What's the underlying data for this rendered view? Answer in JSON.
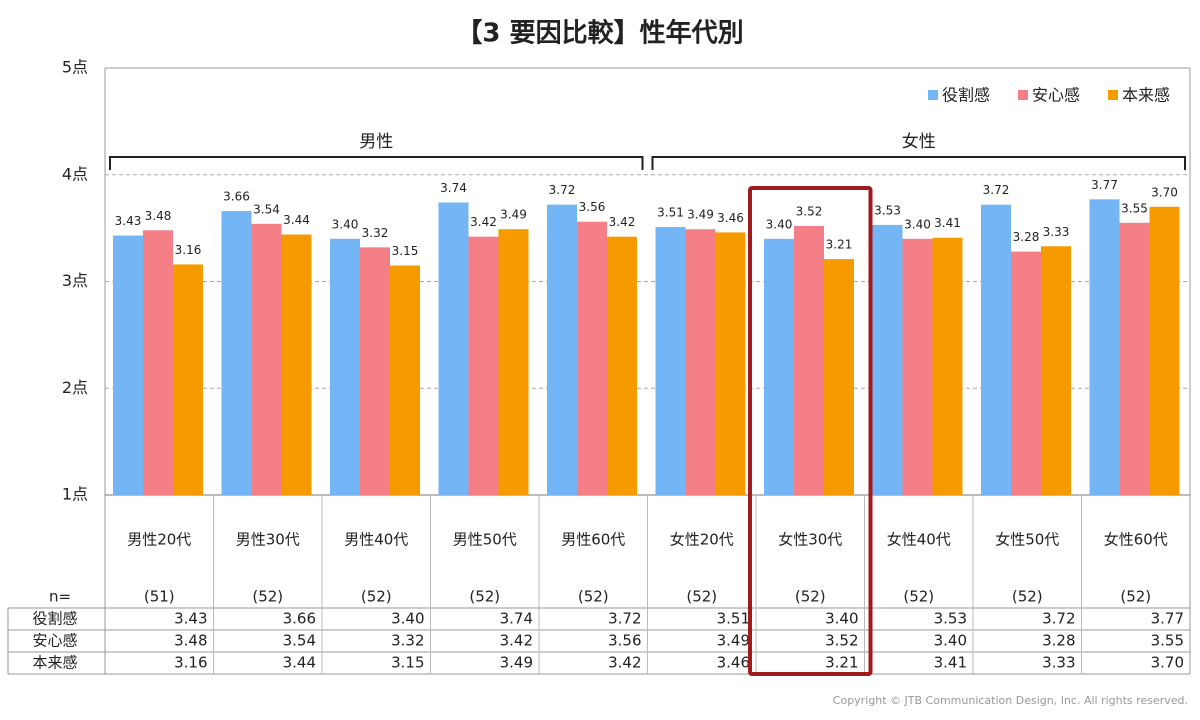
{
  "chart_data": {
    "type": "bar",
    "title": "【3 要因比較】性年代別",
    "categories": [
      "男性20代",
      "男性30代",
      "男性40代",
      "男性50代",
      "男性60代",
      "女性20代",
      "女性30代",
      "女性40代",
      "女性50代",
      "女性60代"
    ],
    "groups": [
      "男性",
      "女性"
    ],
    "n_label": "n=",
    "n": [
      "(51)",
      "(52)",
      "(52)",
      "(52)",
      "(52)",
      "(52)",
      "(52)",
      "(52)",
      "(52)",
      "(52)"
    ],
    "series": [
      {
        "name": "役割感",
        "color": "#74b5f5",
        "values": [
          3.43,
          3.66,
          3.4,
          3.74,
          3.72,
          3.51,
          3.4,
          3.53,
          3.72,
          3.77
        ],
        "value_labels": [
          "3.43",
          "3.66",
          "3.40",
          "3.74",
          "3.72",
          "3.51",
          "3.40",
          "3.53",
          "3.72",
          "3.77"
        ]
      },
      {
        "name": "安心感",
        "color": "#f47f87",
        "values": [
          3.48,
          3.54,
          3.32,
          3.42,
          3.56,
          3.49,
          3.52,
          3.4,
          3.28,
          3.55
        ],
        "value_labels": [
          "3.48",
          "3.54",
          "3.32",
          "3.42",
          "3.56",
          "3.49",
          "3.52",
          "3.40",
          "3.28",
          "3.55"
        ]
      },
      {
        "name": "本来感",
        "color": "#f59b00",
        "values": [
          3.16,
          3.44,
          3.15,
          3.49,
          3.42,
          3.46,
          3.21,
          3.41,
          3.33,
          3.7
        ],
        "value_labels": [
          "3.16",
          "3.44",
          "3.15",
          "3.49",
          "3.42",
          "3.46",
          "3.21",
          "3.41",
          "3.33",
          "3.70"
        ]
      }
    ],
    "ylim": [
      1,
      5
    ],
    "yticks": [
      {
        "value": 1,
        "label": "1点"
      },
      {
        "value": 2,
        "label": "2点"
      },
      {
        "value": 3,
        "label": "3点"
      },
      {
        "value": 4,
        "label": "4点"
      },
      {
        "value": 5,
        "label": "5点"
      }
    ],
    "grid": true,
    "legend": "upper right",
    "copyright": "Copyright © JTB Communication Design, Inc. All rights reserved."
  }
}
